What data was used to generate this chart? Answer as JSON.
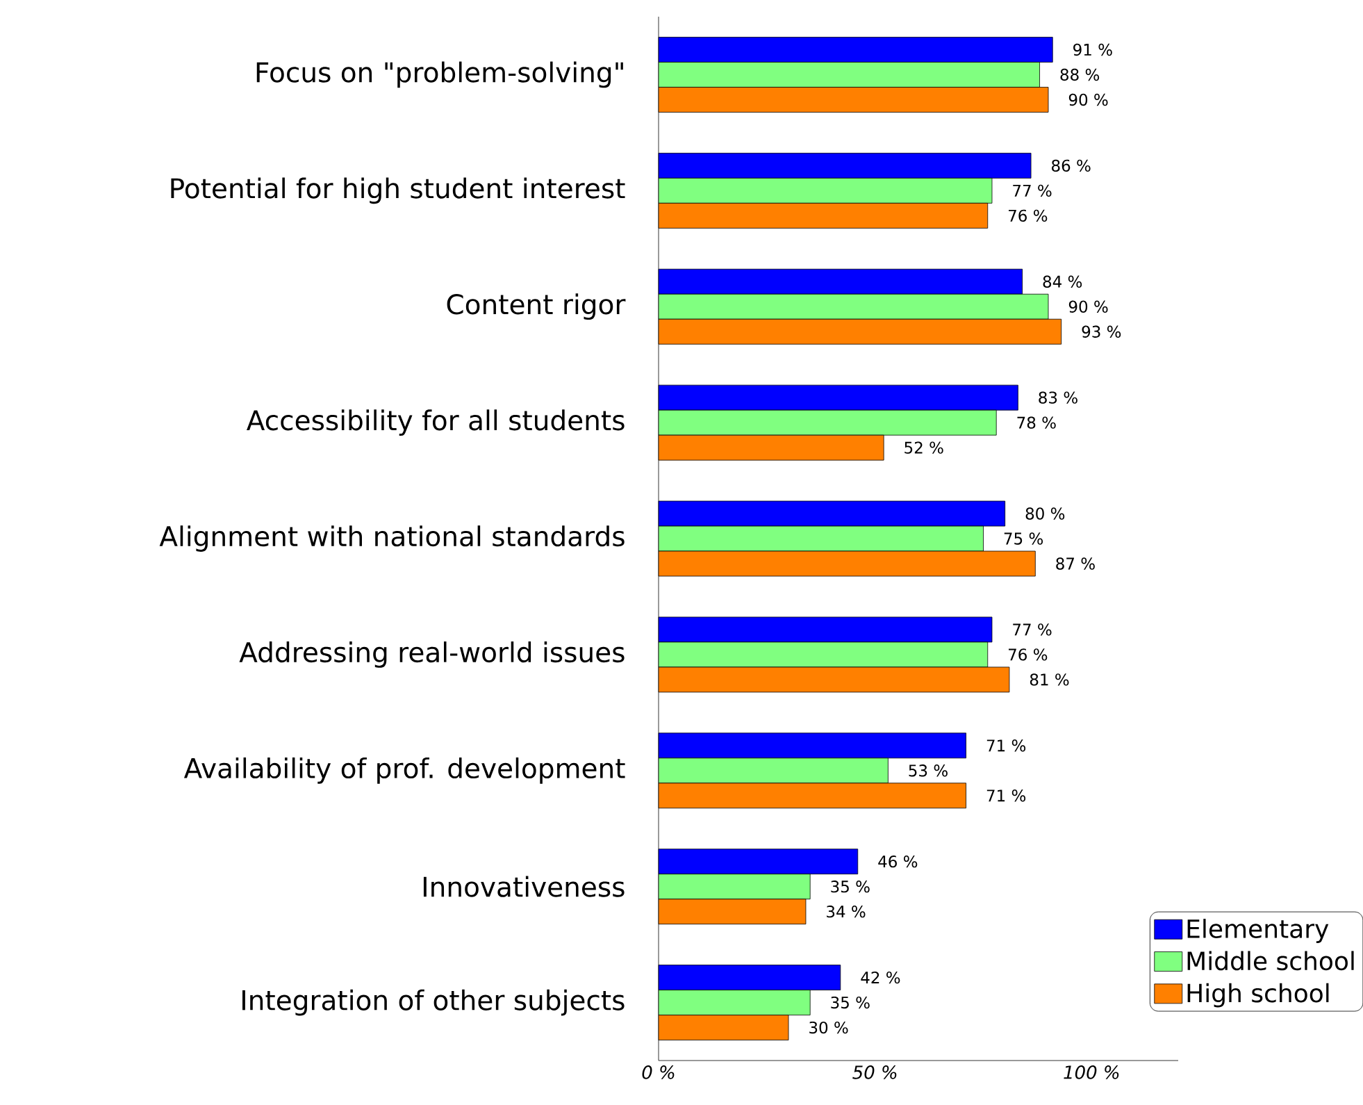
{
  "chart_data": {
    "type": "bar",
    "orientation": "horizontal",
    "categories": [
      "Focus on \"problem-solving\"",
      "Potential for high student interest",
      "Content rigor",
      "Accessibility for all students",
      "Alignment with national standards",
      "Addressing real-world issues",
      "Availability of prof. development",
      "Innovativeness",
      "Integration of other subjects"
    ],
    "series": [
      {
        "name": "Elementary",
        "color": "#0000ff",
        "values": [
          91,
          86,
          84,
          83,
          80,
          77,
          71,
          46,
          42
        ],
        "value_labels": [
          "91 %",
          "86 %",
          "84 %",
          "83 %",
          "80 %",
          "77 %",
          "71 %",
          "46 %",
          "42 %"
        ]
      },
      {
        "name": "Middle school",
        "color": "#80ff80",
        "values": [
          88,
          77,
          90,
          78,
          75,
          76,
          53,
          35,
          35
        ],
        "value_labels": [
          "88 %",
          "77 %",
          "90 %",
          "78 %",
          "75 %",
          "76 %",
          "53 %",
          "35 %",
          "35 %"
        ]
      },
      {
        "name": "High school",
        "color": "#ff8000",
        "values": [
          90,
          76,
          93,
          52,
          87,
          81,
          71,
          34,
          30
        ],
        "value_labels": [
          "90 %",
          "76 %",
          "93 %",
          "52 %",
          "87 %",
          "81 %",
          "71 %",
          "34 %",
          "30 %"
        ]
      }
    ],
    "xlim": [
      0,
      120
    ],
    "xticks": [
      {
        "value": 0,
        "label": "0 %"
      },
      {
        "value": 50,
        "label": "50 %"
      },
      {
        "value": 100,
        "label": "100 %"
      }
    ],
    "legend": "bottom right",
    "grid": false
  }
}
